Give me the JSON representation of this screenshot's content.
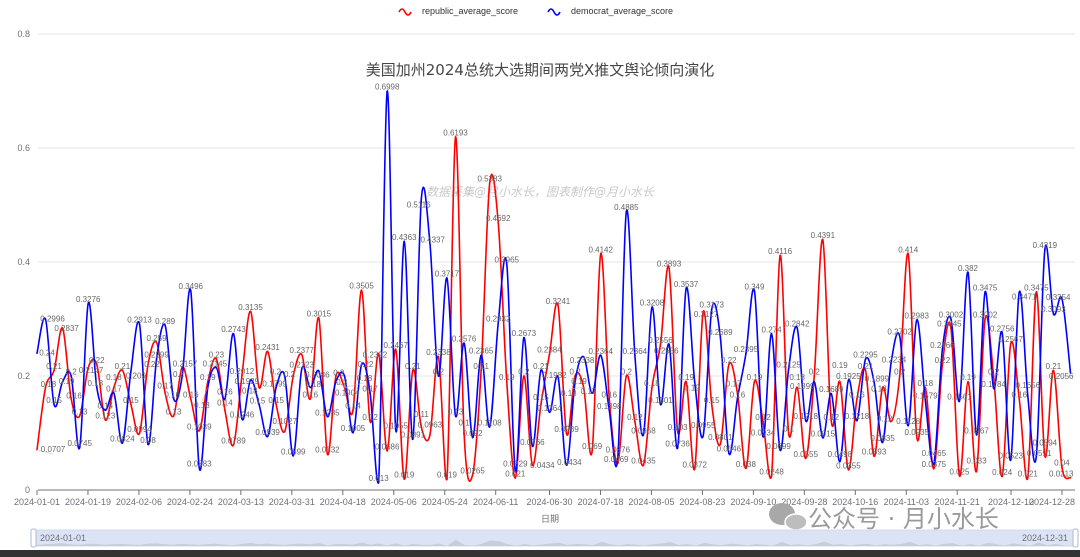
{
  "chart_data": {
    "type": "line",
    "title": "美国加州2024总统大选期间两党X推文舆论倾向演化",
    "xlabel": "日期",
    "ylabel": "",
    "ylim": [
      0,
      0.8
    ],
    "yticks": [
      "0",
      "0.2",
      "0.4",
      "0.6",
      "0.8"
    ],
    "grid": true,
    "legend_position": "top",
    "x_start": "2024-01-01",
    "x_end": "2024-12-31",
    "xticks": [
      "2024-01-01",
      "2024-01-19",
      "2024-02-06",
      "2024-02-24",
      "2024-03-13",
      "2024-03-31",
      "2024-04-18",
      "2024-05-06",
      "2024-05-24",
      "2024-06-11",
      "2024-06-30",
      "2024-07-18",
      "2024-08-05",
      "2024-08-23",
      "2024-09-10",
      "2024-09-28",
      "2024-10-16",
      "2024-11-03",
      "2024-11-21",
      "2024-12-10",
      "2024-12-28"
    ],
    "series": [
      {
        "name": "republic_average_score",
        "color": "#ff0000",
        "values": [
          0.0707,
          0.18,
          0.21,
          0.2837,
          0.16,
          0.13,
          0.2147,
          0.22,
          0.123,
          0.18,
          0.21,
          0.15,
          0.0994,
          0.22,
          0.259,
          0.17,
          0.13,
          0.2157,
          0.16,
          0.1039,
          0.19,
          0.23,
          0.14,
          0.0789,
          0.2012,
          0.3135,
          0.18,
          0.2431,
          0.15,
          0.1027,
          0.2,
          0.2377,
          0.16,
          0.3015,
          0.0632,
          0.2,
          0.18,
          0.14,
          0.3505,
          0.12,
          0.2392,
          0.0686,
          0.2467,
          0.019,
          0.21,
          0.11,
          0.0963,
          0.2338,
          0.019,
          0.6193,
          0.1,
          0.0265,
          0.21,
          0.5383,
          0.4692,
          0.19,
          0.021,
          0.2,
          0.0434,
          0.15,
          0.2384,
          0.3241,
          0.0989,
          0.2,
          0.18,
          0.069,
          0.4142,
          0.16,
          0.0469,
          0.2,
          0.12,
          0.0435,
          0.18,
          0.2556,
          0.3893,
          0.103,
          0.19,
          0.0372,
          0.3127,
          0.15,
          0.0801,
          0.22,
          0.17,
          0.038,
          0.19,
          0.12,
          0.0248,
          0.4116,
          0.1,
          0.18,
          0.0555,
          0.2,
          0.4391,
          0.12,
          0.19,
          0.0355,
          0.16,
          0.21,
          0.0593,
          0.18,
          0.12,
          0.2,
          0.414,
          0.0935,
          0.18,
          0.0375,
          0.22,
          0.2845,
          0.025,
          0.19,
          0.033,
          0.3002,
          0.2,
          0.024,
          0.2567,
          0.16,
          0.021,
          0.3475,
          0.0594,
          0.21,
          0.04,
          0.0213
        ]
      },
      {
        "name": "democrat_average_score",
        "color": "#0000ff",
        "values": [
          0.24,
          0.2996,
          0.15,
          0.19,
          0.2,
          0.0745,
          0.3276,
          0.18,
          0.14,
          0.17,
          0.0824,
          0.209,
          0.2913,
          0.08,
          0.2299,
          0.289,
          0.16,
          0.2,
          0.3496,
          0.0383,
          0.18,
          0.2145,
          0.16,
          0.2743,
          0.1246,
          0.1929,
          0.15,
          0.0939,
          0.1799,
          0.2,
          0.0599,
          0.2123,
          0.18,
          0.2086,
          0.1285,
          0.1904,
          0.2,
          0.1005,
          0.22,
          0.17,
          0.013,
          0.6998,
          0.1055,
          0.4363,
          0.0891,
          0.5116,
          0.4337,
          0.2,
          0.3717,
          0.13,
          0.2576,
          0.092,
          0.2365,
          0.1108,
          0.2932,
          0.3965,
          0.0329,
          0.2673,
          0.0766,
          0.21,
          0.1364,
          0.1982,
          0.0434,
          0.19,
          0.2338,
          0.17,
          0.2364,
          0.1398,
          0.0576,
          0.4885,
          0.2364,
          0.0968,
          0.3208,
          0.1501,
          0.2556,
          0.0736,
          0.3537,
          0.19,
          0.0955,
          0.3173,
          0.2689,
          0.0646,
          0.16,
          0.2395,
          0.349,
          0.0934,
          0.274,
          0.0699,
          0.2125,
          0.2842,
          0.1218,
          0.1899,
          0.0915,
          0.1689,
          0.0498,
          0.1925,
          0.1218,
          0.2295,
          0.1899,
          0.0835,
          0.2234,
          0.2702,
          0.1128,
          0.2983,
          0.1579,
          0.0465,
          0.2466,
          0.3002,
          0.1561,
          0.382,
          0.0967,
          0.3475,
          0.1784,
          0.2756,
          0.0523,
          0.3471,
          0.1656,
          0.0591,
          0.4219,
          0.3093,
          0.3354,
          0.2056
        ]
      }
    ]
  },
  "watermarks": {
    "credit": "数据采集@月小水长，图表制作@月小水长",
    "wechat": "公众号 · 月小水长"
  },
  "datazoom": {
    "start_label": "2024-01-01",
    "end_label": "2024-12-31",
    "start": 0,
    "end": 100
  }
}
